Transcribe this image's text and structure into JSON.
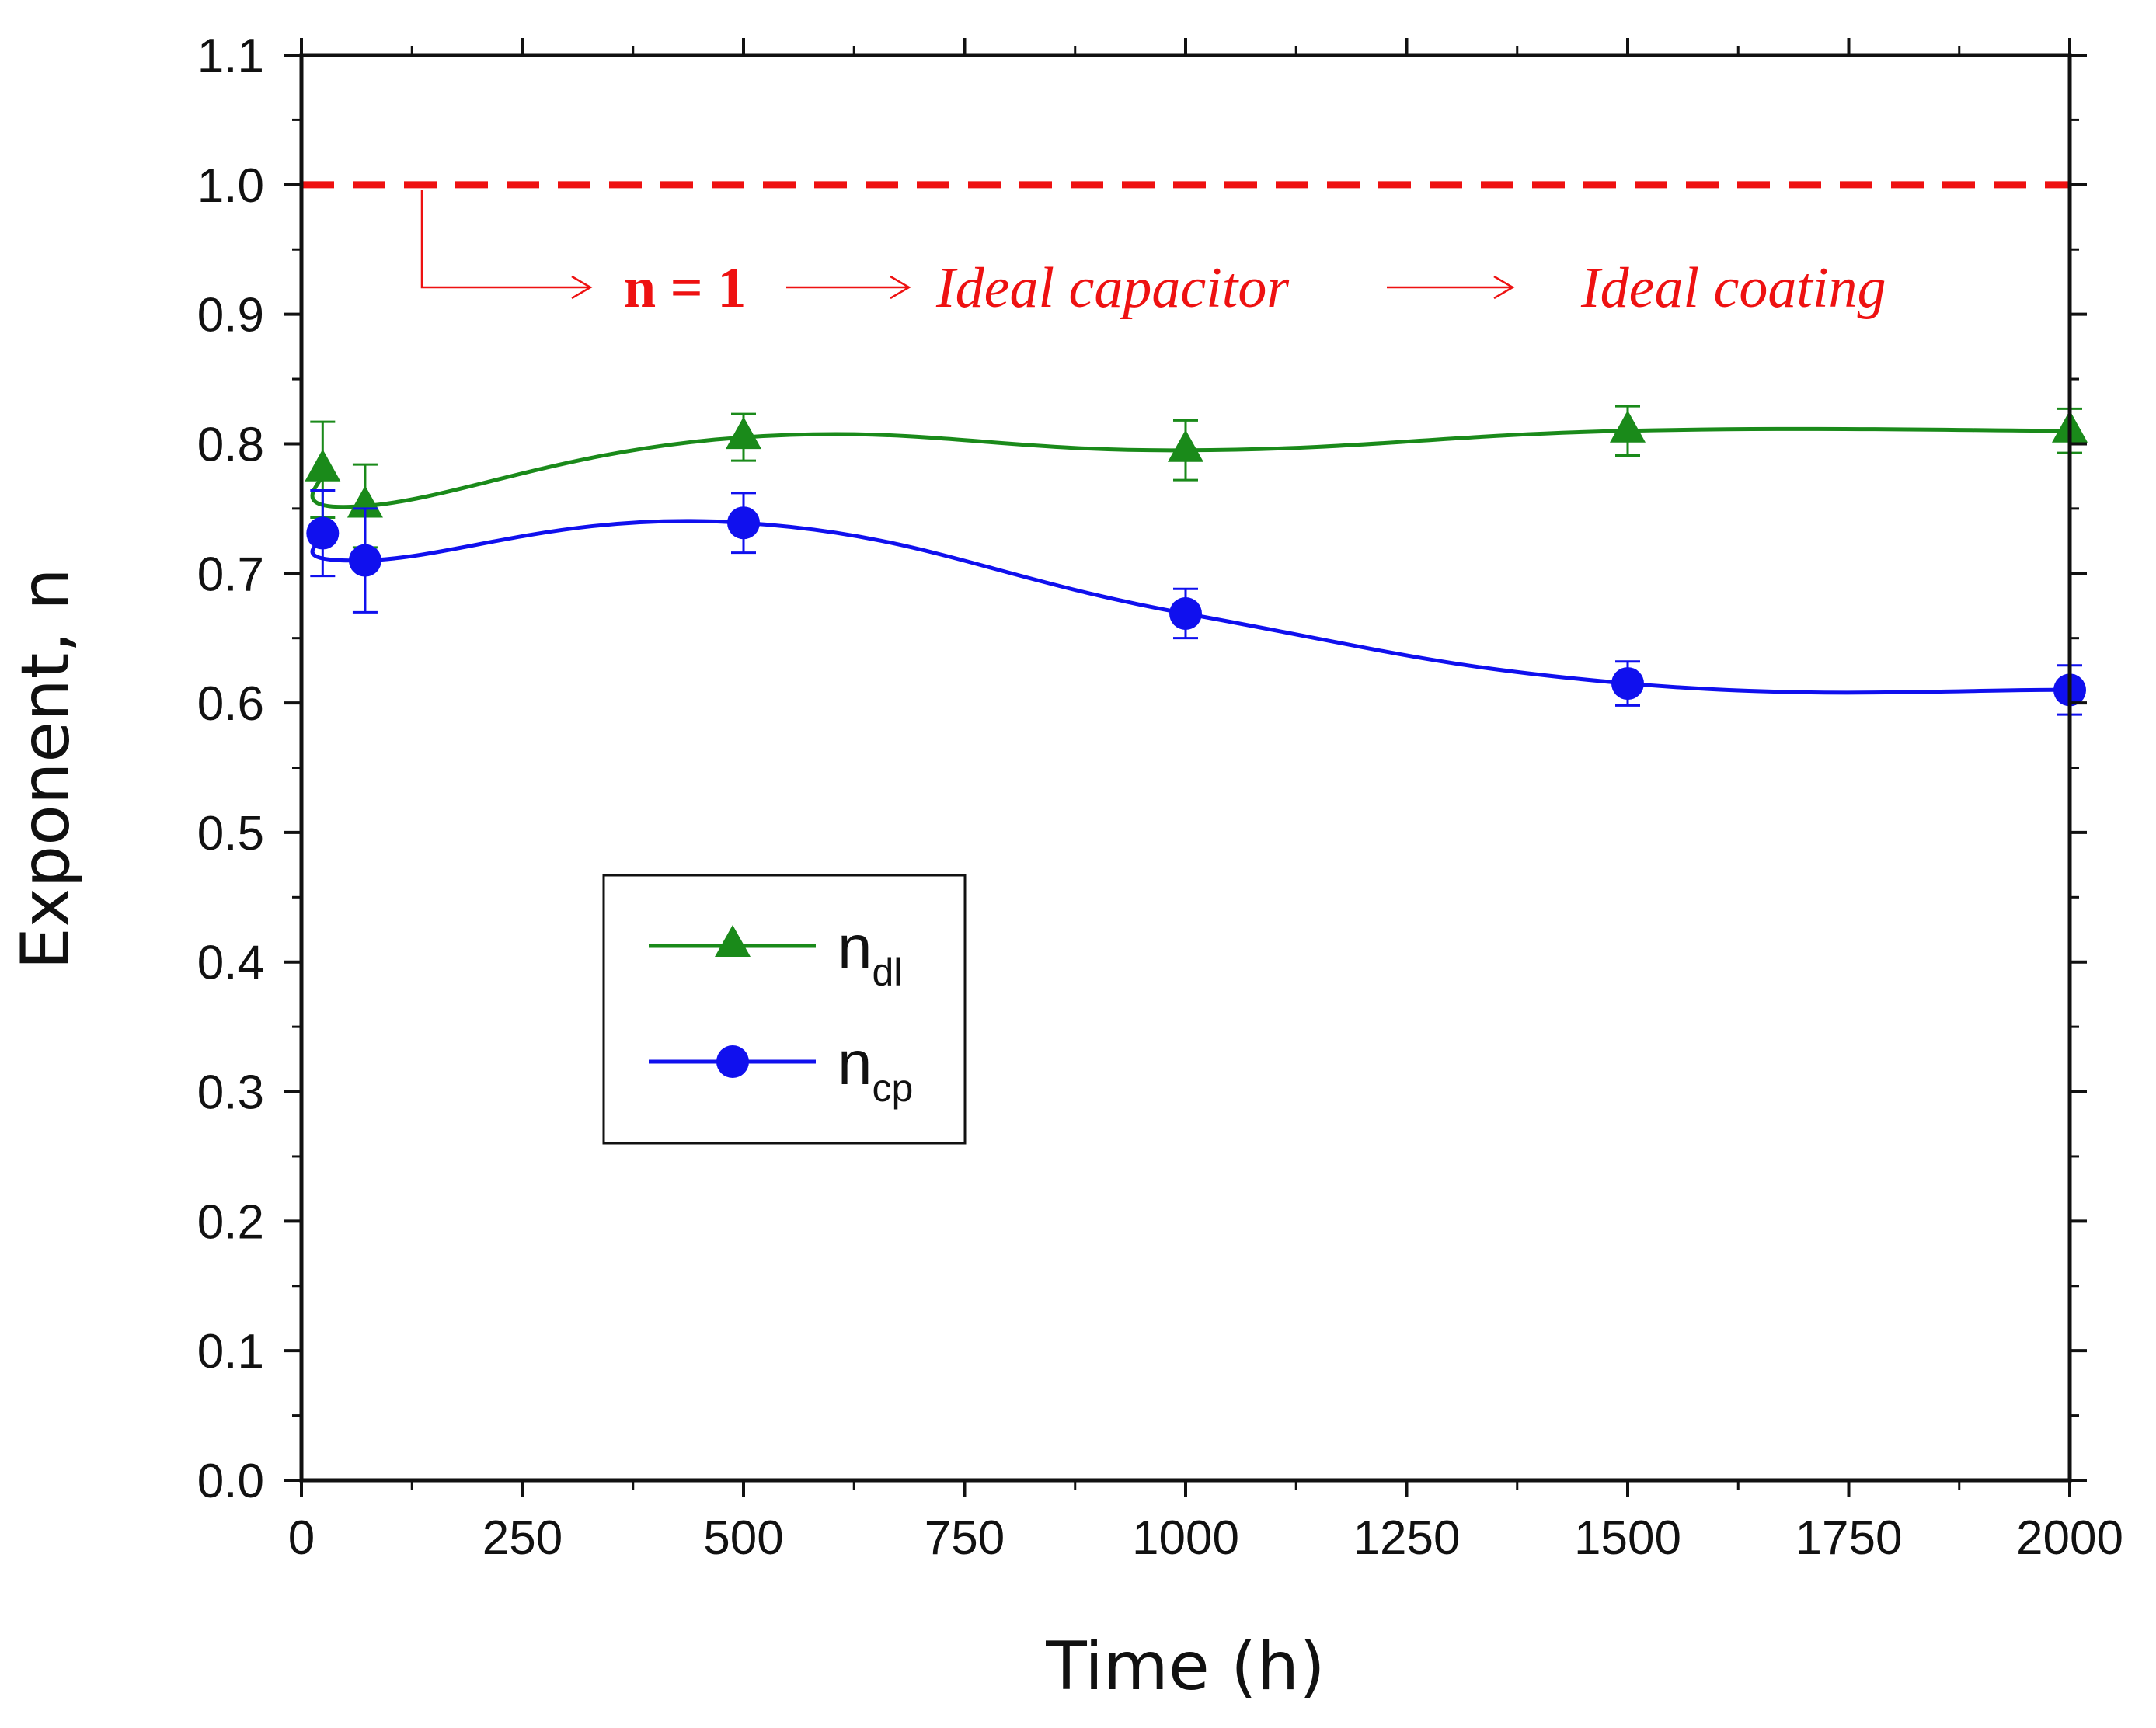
{
  "chart_data": {
    "type": "line",
    "xlabel": "Time (h)",
    "ylabel": "Exponent, n",
    "xlim": [
      0,
      2000
    ],
    "ylim": [
      0.0,
      1.1
    ],
    "xticks": [
      0,
      250,
      500,
      750,
      1000,
      1250,
      1500,
      1750,
      2000
    ],
    "xtick_labels": [
      "0",
      "250",
      "500",
      "750",
      "1000",
      "1250",
      "1500",
      "1750",
      "2000"
    ],
    "yticks": [
      0.0,
      0.1,
      0.2,
      0.3,
      0.4,
      0.5,
      0.6,
      0.7,
      0.8,
      0.9,
      1.0,
      1.1
    ],
    "ytick_labels": [
      "0.0",
      "0.1",
      "0.2",
      "0.3",
      "0.4",
      "0.5",
      "0.6",
      "0.7",
      "0.8",
      "0.9",
      "1.0",
      "1.1"
    ],
    "grid": false,
    "legend_position": "center-left",
    "series": [
      {
        "name": "n_dl",
        "label_main": "n",
        "label_sub": "dl",
        "color": "#1a8a1a",
        "marker": "triangle",
        "x": [
          24,
          72,
          500,
          1000,
          1500,
          2000
        ],
        "y": [
          0.78,
          0.752,
          0.805,
          0.795,
          0.81,
          0.81
        ],
        "error": [
          0.037,
          0.032,
          0.018,
          0.023,
          0.019,
          0.017
        ]
      },
      {
        "name": "n_cp",
        "label_main": "n",
        "label_sub": "cp",
        "color": "#1010ee",
        "marker": "circle",
        "x": [
          24,
          72,
          500,
          1000,
          1500,
          2000
        ],
        "y": [
          0.731,
          0.71,
          0.739,
          0.669,
          0.615,
          0.61
        ],
        "error": [
          0.033,
          0.04,
          0.023,
          0.019,
          0.017,
          0.019
        ]
      }
    ],
    "reference_line": {
      "y": 1.0,
      "color": "#ee1111",
      "style": "dashed"
    },
    "annotations": {
      "color": "#ee1111",
      "n_equals": "n = 1",
      "capacitor": "Ideal capacitor",
      "coating": "Ideal coating"
    }
  }
}
